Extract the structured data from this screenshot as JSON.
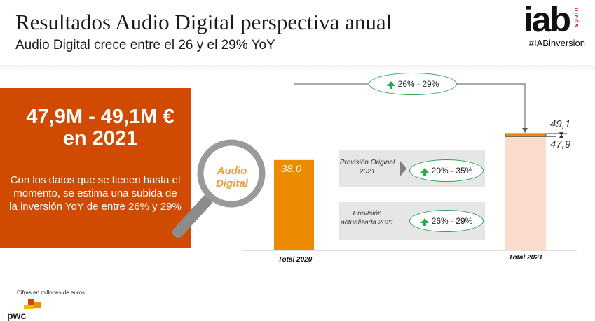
{
  "header": {
    "title": "Resultados Audio Digital perspectiva anual",
    "subtitle": "Audio Digital crece entre el 26 y el 29% YoY"
  },
  "logo": {
    "brand": "iab",
    "country": "spain",
    "hashtag": "#IABinversion",
    "icon": "iab-spain-logo"
  },
  "highlight": {
    "value_range": "47,9M - 49,1M €",
    "year_line": "en 2021",
    "description": "Con los datos que se tienen hasta el momento, se estima una subida de la inversión YoY de entre 26% y 29%"
  },
  "magnifier": {
    "icon": "magnifying-glass-icon",
    "label": "Audio Digital"
  },
  "chart_data": {
    "type": "bar",
    "categories": [
      "Total 2020",
      "Total 2021"
    ],
    "bars": [
      {
        "category": "Total 2020",
        "value": 38.0,
        "label": "38,0"
      },
      {
        "category": "Total 2021",
        "low": 47.9,
        "high": 49.1,
        "low_label": "47,9",
        "high_label": "49,1"
      }
    ],
    "growth_overall": "26% - 29%",
    "forecasts": [
      {
        "label": "Previsión Original 2021",
        "growth": "20% - 35%"
      },
      {
        "label": "Previsión actualizada 2021",
        "growth": "26% - 29%"
      }
    ],
    "xlabel": "",
    "ylabel": "",
    "ylim": [
      0,
      52
    ],
    "colors": {
      "bar": "#ed8b00",
      "range_fill": "#fcdccc",
      "accent": "#d04a02",
      "growth": "#2fa84f",
      "forecast_bg": "#e6e6e6"
    },
    "grid": false
  },
  "footer": {
    "note": "Cifras en millones de euros",
    "logo_text": "pwc"
  }
}
